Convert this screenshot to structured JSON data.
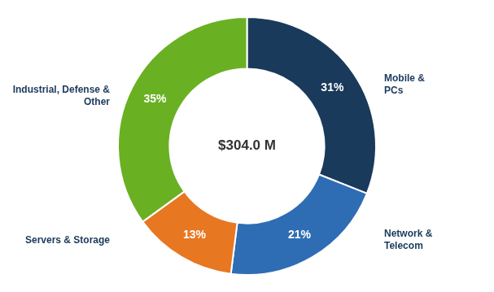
{
  "chart_data": {
    "type": "doughnut",
    "categories": [
      "Mobile &\nPCs",
      "Network &\nTelecom",
      "Servers & Storage",
      "Industrial, Defense &\nOther"
    ],
    "values": [
      31,
      21,
      13,
      35
    ],
    "value_labels": [
      "31%",
      "21%",
      "13%",
      "35%"
    ],
    "colors": [
      "#1a3a5c",
      "#2e6db4",
      "#e87722",
      "#6ab023"
    ],
    "data_labels": true,
    "annotations": [
      "$304.0 M"
    ]
  }
}
